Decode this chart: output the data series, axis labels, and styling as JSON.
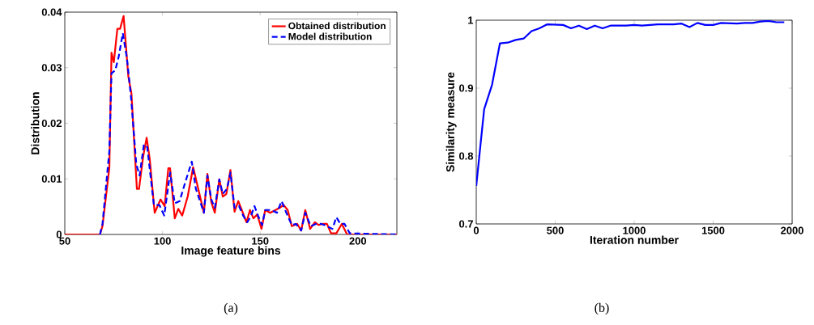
{
  "chart_data": [
    {
      "type": "line",
      "xlabel": "Image feature bins",
      "ylabel": "Distribution",
      "xlim": [
        50,
        220
      ],
      "xticks": [
        50,
        100,
        150,
        200
      ],
      "ylim": [
        0,
        0.04
      ],
      "yticks": [
        0,
        0.01,
        0.02,
        0.03,
        0.04
      ],
      "legend": "top right",
      "annotations": [
        "(a)"
      ],
      "series": [
        {
          "name": "Obtained distribution",
          "color": "#ff0000",
          "line_style": "solid",
          "x": [
            50,
            68,
            69.3,
            72.8,
            73.9,
            75.1,
            76.9,
            78.3,
            80.1,
            82.5,
            84.1,
            86.9,
            88,
            90.1,
            91.9,
            93.5,
            96,
            99,
            101.1,
            103,
            103.9,
            106.3,
            108.1,
            110.1,
            112.9,
            115.7,
            121.2,
            123,
            125,
            126.8,
            129.1,
            130.9,
            132.7,
            134.8,
            136.9,
            138.8,
            140.6,
            143,
            144.8,
            146.6,
            148.5,
            150.7,
            152.6,
            155.1,
            157.9,
            160,
            162,
            164.1,
            166.2,
            169,
            171,
            173.1,
            175.6,
            178,
            180,
            182.1,
            184.2,
            186.3,
            189,
            191.8,
            194.5,
            220
          ],
          "values": [
            0,
            0,
            0.0015,
            0.012,
            0.0327,
            0.031,
            0.037,
            0.037,
            0.0393,
            0.0285,
            0.0254,
            0.0082,
            0.0082,
            0.014,
            0.0174,
            0.0135,
            0.0039,
            0.0063,
            0.0051,
            0.0119,
            0.0119,
            0.0029,
            0.0046,
            0.0034,
            0.0068,
            0.0121,
            0.0039,
            0.0109,
            0.0058,
            0.0039,
            0.0099,
            0.0068,
            0.0073,
            0.0116,
            0.0041,
            0.006,
            0.0044,
            0.0022,
            0.0044,
            0.0029,
            0.0036,
            0.001,
            0.0044,
            0.0039,
            0.0044,
            0.0048,
            0.0053,
            0.0044,
            0.0015,
            0.0019,
            0.0007,
            0.0044,
            0.001,
            0.0022,
            0.0017,
            0.0019,
            0.0019,
            0.0002,
            0.0002,
            0.0019,
            0,
            0
          ]
        },
        {
          "name": "Model distribution",
          "color": "#0000ff",
          "line_style": "dashed",
          "x": [
            68,
            69.3,
            72.8,
            73.9,
            75.8,
            77.6,
            79.7,
            81.8,
            83.9,
            86.6,
            88.3,
            90.5,
            92.2,
            95.6,
            98.4,
            100.9,
            103.9,
            106.3,
            108.8,
            111.5,
            115,
            117.1,
            119.2,
            121.2,
            123,
            125,
            126.8,
            129.1,
            130.9,
            133,
            134.8,
            136.9,
            139.2,
            141.3,
            143.4,
            145.4,
            147.1,
            148.9,
            151,
            152.6,
            155.8,
            158.6,
            161,
            163.4,
            166.2,
            168.3,
            171,
            173.1,
            175.9,
            178.6,
            181.4,
            184.2,
            187,
            189,
            191.1,
            193.2,
            195.9,
            220
          ],
          "values": [
            0,
            0.0019,
            0.015,
            0.029,
            0.0295,
            0.032,
            0.0362,
            0.0317,
            0.0247,
            0.0126,
            0.0106,
            0.0162,
            0.0157,
            0.0053,
            0.0053,
            0.0034,
            0.0111,
            0.0056,
            0.006,
            0.0092,
            0.0131,
            0.0082,
            0.006,
            0.0039,
            0.0106,
            0.0063,
            0.0048,
            0.0099,
            0.0073,
            0.0082,
            0.0111,
            0.0048,
            0.0051,
            0.0034,
            0.0022,
            0.0034,
            0.0051,
            0.0034,
            0.0017,
            0.0044,
            0.0044,
            0.0039,
            0.006,
            0.0039,
            0.0017,
            0.0019,
            0.0007,
            0.0039,
            0.0015,
            0.0019,
            0.0019,
            0.0015,
            0.001,
            0.0031,
            0.0019,
            0.0019,
            0.0002,
            0
          ]
        }
      ]
    },
    {
      "type": "line",
      "xlabel": "Iteration number",
      "ylabel": "Similarity measure",
      "xlim": [
        0,
        2000
      ],
      "xticks": [
        0,
        500,
        1000,
        1500,
        2000
      ],
      "ylim": [
        0.7,
        1
      ],
      "yticks": [
        0.7,
        0.8,
        0.9,
        1
      ],
      "annotations": [
        "(b)"
      ],
      "series": [
        {
          "color": "#0000ff",
          "line_style": "solid",
          "x": [
            0,
            50,
            100,
            150,
            200,
            250,
            300,
            350,
            400,
            450,
            550,
            600,
            650,
            700,
            750,
            800,
            850,
            950,
            1000,
            1050,
            1150,
            1250,
            1300,
            1350,
            1400,
            1450,
            1500,
            1550,
            1650,
            1700,
            1750,
            1800,
            1850,
            1900,
            1950
          ],
          "values": [
            0.756,
            0.869,
            0.905,
            0.966,
            0.967,
            0.971,
            0.973,
            0.984,
            0.988,
            0.994,
            0.993,
            0.988,
            0.992,
            0.987,
            0.992,
            0.988,
            0.992,
            0.992,
            0.993,
            0.992,
            0.994,
            0.994,
            0.995,
            0.99,
            0.996,
            0.993,
            0.993,
            0.996,
            0.995,
            0.996,
            0.996,
            0.998,
            0.999,
            0.997,
            0.997
          ]
        }
      ]
    }
  ]
}
